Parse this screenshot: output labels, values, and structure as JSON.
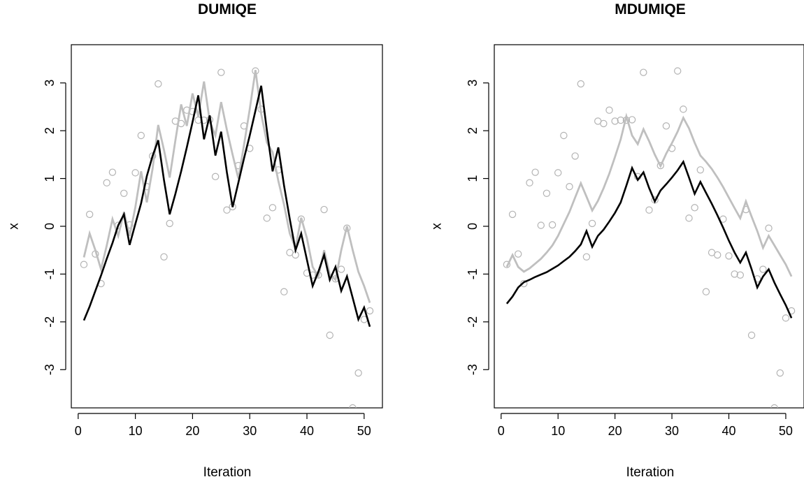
{
  "colors": {
    "observed": "#b3b3b3",
    "upper": "#bfbfbf",
    "estimate": "#000000"
  },
  "chart_data": [
    {
      "type": "line",
      "title": "DUMIQE",
      "xlabel": "Iteration",
      "ylabel": "x",
      "xlim": [
        -1.2,
        53.2
      ],
      "ylim": [
        -3.8,
        3.8
      ],
      "xticks": [
        0,
        10,
        20,
        30,
        40,
        50
      ],
      "xtick_labels": [
        "0",
        "10",
        "20",
        "30",
        "40",
        "50"
      ],
      "yticks": [
        -3,
        -2,
        -1,
        0,
        1,
        2,
        3
      ],
      "ytick_labels": [
        "-3",
        "-2",
        "-1",
        "0",
        "1",
        "2",
        "3"
      ],
      "grid": false,
      "x": [
        1,
        2,
        3,
        4,
        5,
        6,
        7,
        8,
        9,
        10,
        11,
        12,
        13,
        14,
        15,
        16,
        17,
        18,
        19,
        20,
        21,
        22,
        23,
        24,
        25,
        26,
        27,
        28,
        29,
        30,
        31,
        32,
        33,
        34,
        35,
        36,
        37,
        38,
        39,
        40,
        41,
        42,
        43,
        44,
        45,
        46,
        47,
        48,
        49,
        50,
        51
      ],
      "series": [
        {
          "role": "observed",
          "style": "points",
          "values": [
            -0.8,
            0.25,
            -0.58,
            -1.2,
            0.91,
            1.13,
            0.02,
            0.69,
            0.03,
            1.12,
            1.9,
            0.83,
            1.47,
            2.98,
            -0.64,
            0.06,
            2.2,
            2.15,
            2.43,
            2.4,
            2.22,
            2.22,
            2.23,
            1.04,
            3.22,
            0.34,
            0.41,
            1.27,
            2.1,
            1.63,
            3.25,
            2.45,
            0.17,
            0.39,
            1.18,
            -1.37,
            -0.55,
            -0.6,
            0.15,
            -0.98,
            -1.02,
            -1.02,
            0.35,
            -2.28,
            -1.1,
            -0.9,
            -0.04,
            -3.8,
            -3.07,
            -1.95,
            -1.77
          ]
        },
        {
          "role": "upper",
          "style": "line",
          "values": [
            -0.65,
            -0.15,
            -0.5,
            -0.9,
            -0.4,
            0.15,
            -0.2,
            0.3,
            -0.2,
            0.4,
            1.15,
            0.5,
            1.2,
            2.12,
            1.6,
            1.02,
            1.8,
            2.55,
            2.1,
            2.78,
            2.3,
            3.03,
            2.2,
            1.9,
            2.6,
            2.02,
            1.5,
            1.0,
            1.7,
            2.45,
            3.27,
            2.35,
            1.75,
            1.55,
            0.95,
            0.45,
            -0.15,
            -0.45,
            0.18,
            -0.25,
            -0.85,
            -1.05,
            -0.5,
            -1.0,
            -1.12,
            -0.5,
            0.0,
            -0.5,
            -0.95,
            -1.25,
            -1.6
          ]
        },
        {
          "role": "estimate",
          "style": "line",
          "values": [
            -1.97,
            -1.68,
            -1.35,
            -1.03,
            -0.68,
            -0.35,
            0.02,
            0.25,
            -0.39,
            0.05,
            0.48,
            1.05,
            1.47,
            1.8,
            0.97,
            0.25,
            0.68,
            1.15,
            1.65,
            2.18,
            2.74,
            1.82,
            2.32,
            1.48,
            1.98,
            1.13,
            0.4,
            0.91,
            1.42,
            1.9,
            2.42,
            2.94,
            2.0,
            1.15,
            1.65,
            0.85,
            0.15,
            -0.5,
            -0.15,
            -0.7,
            -1.25,
            -0.95,
            -0.6,
            -1.12,
            -0.85,
            -1.35,
            -1.05,
            -1.5,
            -1.95,
            -1.7,
            -2.1
          ]
        }
      ]
    },
    {
      "type": "line",
      "title": "MDUMIQE",
      "xlabel": "Iteration",
      "ylabel": "x",
      "xlim": [
        -1.2,
        53.2
      ],
      "ylim": [
        -3.8,
        3.8
      ],
      "xticks": [
        0,
        10,
        20,
        30,
        40,
        50
      ],
      "xtick_labels": [
        "0",
        "10",
        "20",
        "30",
        "40",
        "50"
      ],
      "yticks": [
        -3,
        -2,
        -1,
        0,
        1,
        2,
        3
      ],
      "ytick_labels": [
        "-3",
        "-2",
        "-1",
        "0",
        "1",
        "2",
        "3"
      ],
      "grid": false,
      "x": [
        1,
        2,
        3,
        4,
        5,
        6,
        7,
        8,
        9,
        10,
        11,
        12,
        13,
        14,
        15,
        16,
        17,
        18,
        19,
        20,
        21,
        22,
        23,
        24,
        25,
        26,
        27,
        28,
        29,
        30,
        31,
        32,
        33,
        34,
        35,
        36,
        37,
        38,
        39,
        40,
        41,
        42,
        43,
        44,
        45,
        46,
        47,
        48,
        49,
        50,
        51
      ],
      "series": [
        {
          "role": "observed",
          "style": "points",
          "values": [
            -0.8,
            0.25,
            -0.58,
            -1.2,
            0.91,
            1.13,
            0.02,
            0.69,
            0.03,
            1.12,
            1.9,
            0.83,
            1.47,
            2.98,
            -0.64,
            0.06,
            2.2,
            2.15,
            2.43,
            2.2,
            2.22,
            2.22,
            2.23,
            1.04,
            3.22,
            0.34,
            0.55,
            1.27,
            2.1,
            1.63,
            3.25,
            2.45,
            0.17,
            0.39,
            1.18,
            -1.37,
            -0.55,
            -0.6,
            0.15,
            -0.62,
            -1.0,
            -1.02,
            0.35,
            -2.28,
            -1.1,
            -0.9,
            -0.04,
            -3.8,
            -3.07,
            -1.92,
            -1.77
          ]
        },
        {
          "role": "upper",
          "style": "line",
          "values": [
            -0.85,
            -0.6,
            -0.85,
            -0.95,
            -0.88,
            -0.78,
            -0.68,
            -0.55,
            -0.4,
            -0.2,
            0.05,
            0.3,
            0.6,
            0.9,
            0.62,
            0.33,
            0.53,
            0.8,
            1.1,
            1.45,
            1.82,
            2.3,
            1.9,
            1.72,
            2.03,
            1.78,
            1.5,
            1.26,
            1.52,
            1.74,
            1.98,
            2.27,
            2.05,
            1.75,
            1.48,
            1.35,
            1.2,
            1.02,
            0.82,
            0.6,
            0.38,
            0.17,
            0.52,
            0.2,
            -0.1,
            -0.45,
            -0.2,
            -0.4,
            -0.6,
            -0.8,
            -1.05
          ]
        },
        {
          "role": "estimate",
          "style": "line",
          "values": [
            -1.62,
            -1.47,
            -1.28,
            -1.17,
            -1.12,
            -1.06,
            -1.01,
            -0.96,
            -0.89,
            -0.82,
            -0.73,
            -0.64,
            -0.52,
            -0.38,
            -0.1,
            -0.43,
            -0.2,
            -0.07,
            0.1,
            0.28,
            0.5,
            0.85,
            1.22,
            0.97,
            1.13,
            0.8,
            0.52,
            0.75,
            0.88,
            1.02,
            1.17,
            1.35,
            1.02,
            0.68,
            0.93,
            0.7,
            0.47,
            0.23,
            -0.03,
            -0.3,
            -0.55,
            -0.76,
            -0.55,
            -0.9,
            -1.28,
            -1.05,
            -0.9,
            -1.18,
            -1.42,
            -1.65,
            -1.92
          ]
        }
      ]
    }
  ]
}
